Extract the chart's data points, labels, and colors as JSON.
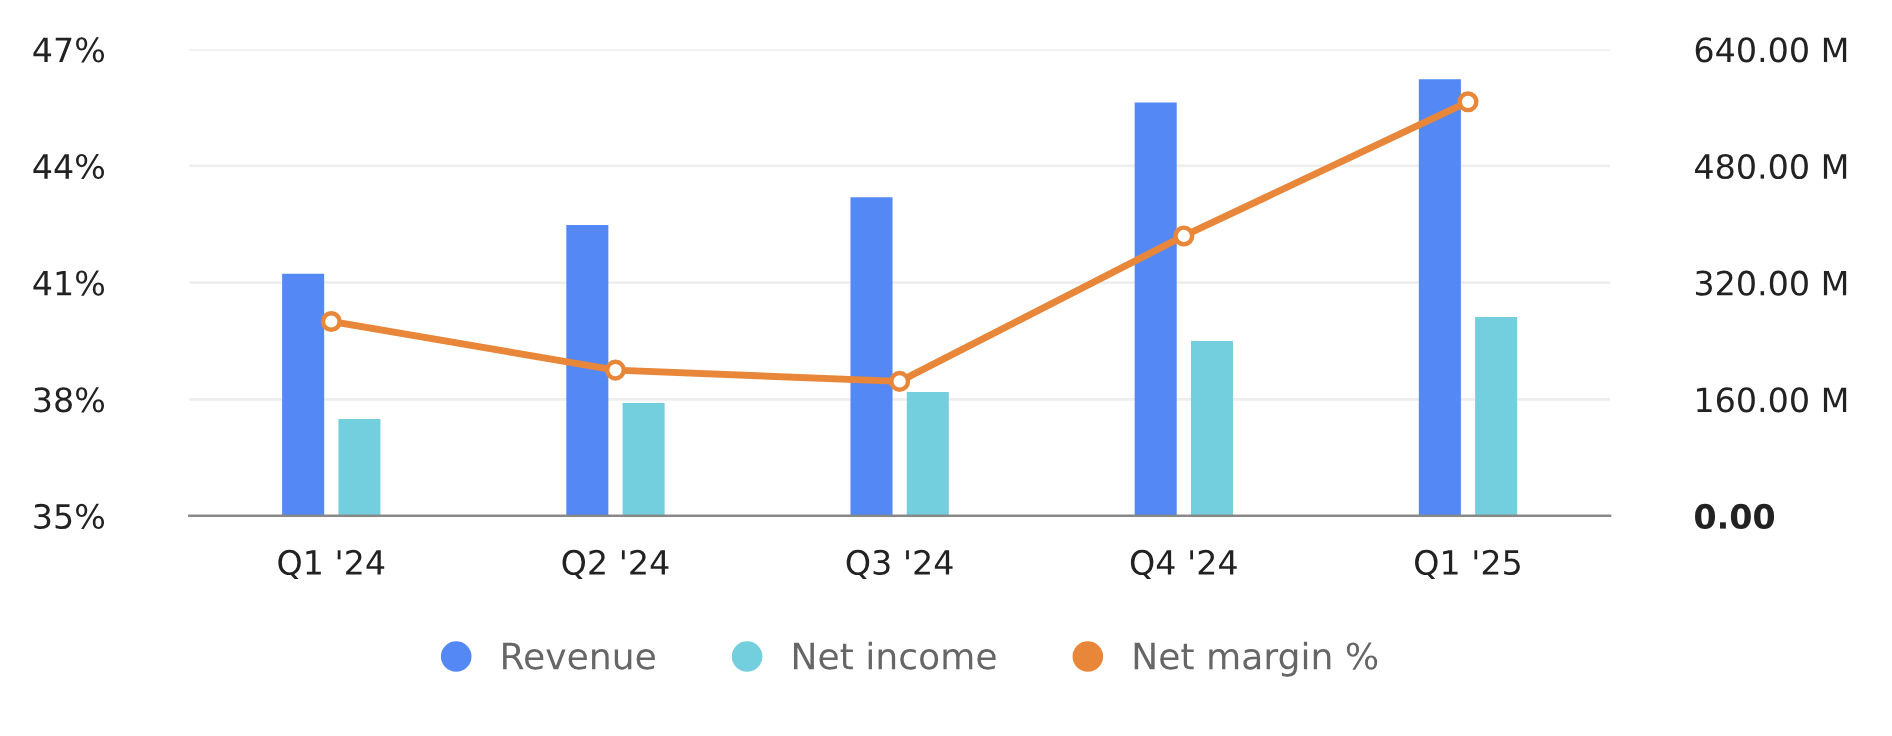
{
  "chart_data": {
    "type": "bar",
    "categories": [
      "Q1 '24",
      "Q2 '24",
      "Q3 '24",
      "Q4 '24",
      "Q1 '25"
    ],
    "series": [
      {
        "name": "Revenue",
        "color": "#5388f5",
        "axis": "y2",
        "values": [
          332,
          399,
          437,
          567,
          599
        ]
      },
      {
        "name": "Net income",
        "color": "#73cfdd",
        "axis": "y2",
        "values": [
          133,
          155,
          170,
          240,
          273
        ]
      },
      {
        "name": "Net margin %",
        "type": "line",
        "color": "#e8863a",
        "marker": "circle",
        "values": [
          40.0,
          38.75,
          38.46,
          42.2,
          45.65
        ]
      }
    ],
    "ylim": [
      35,
      47
    ],
    "yticks": [
      {
        "value": 35,
        "label": "35%"
      },
      {
        "value": 38,
        "label": "38%"
      },
      {
        "value": 41,
        "label": "41%"
      },
      {
        "value": 44,
        "label": "44%"
      },
      {
        "value": 47,
        "label": "47%"
      }
    ],
    "y2lim": [
      0,
      640
    ],
    "y2ticks": [
      {
        "value": 0,
        "label": "0.00"
      },
      {
        "value": 160,
        "label": "160.00 M"
      },
      {
        "value": 320,
        "label": "320.00 M"
      },
      {
        "value": 480,
        "label": "480.00 M"
      },
      {
        "value": 640,
        "label": "640.00 M"
      }
    ],
    "grid": "y",
    "legend": "bottom"
  }
}
